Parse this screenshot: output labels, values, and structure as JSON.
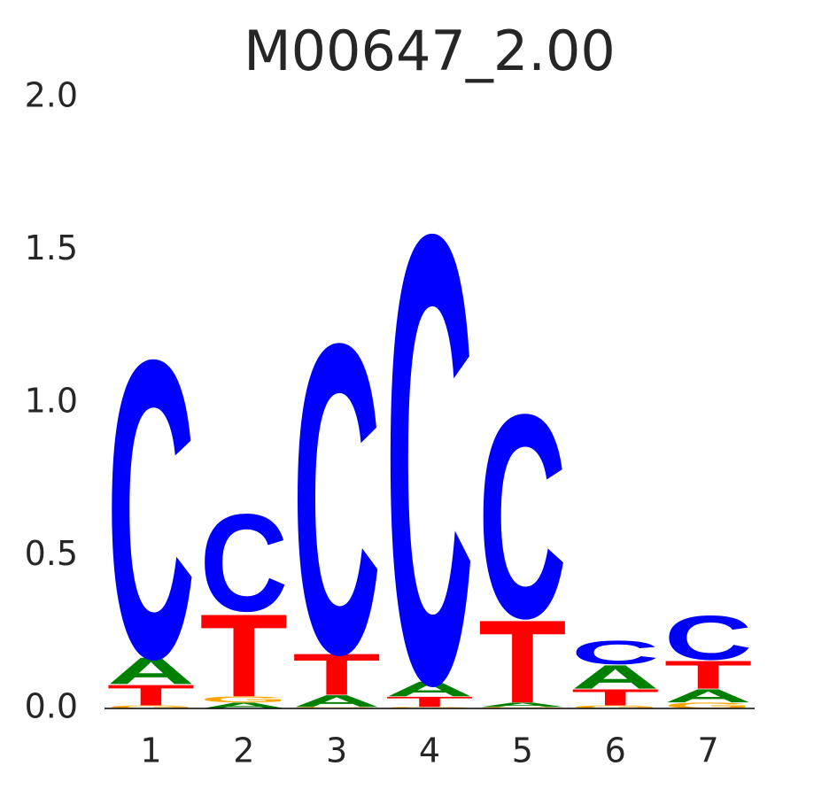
{
  "chart_data": {
    "type": "logo",
    "title": "M00647_2.00",
    "x": [
      1,
      2,
      3,
      4,
      5,
      6,
      7
    ],
    "series": [
      {
        "name": "A",
        "color": "#008000",
        "values": [
          0.09,
          0.02,
          0.04,
          0.05,
          0.015,
          0.08,
          0.045
        ]
      },
      {
        "name": "C",
        "color": "#0000ff",
        "values": [
          1.01,
          0.33,
          1.05,
          1.52,
          0.69,
          0.08,
          0.15
        ]
      },
      {
        "name": "G",
        "color": "#ffa500",
        "values": [
          0.01,
          0.02,
          0.005,
          0.005,
          0.005,
          0.01,
          0.02
        ]
      },
      {
        "name": "T",
        "color": "#ff0000",
        "values": [
          0.07,
          0.28,
          0.14,
          0.035,
          0.28,
          0.055,
          0.095
        ]
      }
    ],
    "xlim": [
      0.5,
      7.5
    ],
    "xticks": [
      1,
      2,
      3,
      4,
      5,
      6,
      7
    ],
    "ylim": [
      0,
      2
    ],
    "yticks": [
      {
        "value": 0,
        "label": "0.0"
      },
      0.5,
      {
        "value": 1,
        "label": "1.0"
      },
      1.5,
      {
        "value": 2,
        "label": "2.0"
      }
    ]
  }
}
